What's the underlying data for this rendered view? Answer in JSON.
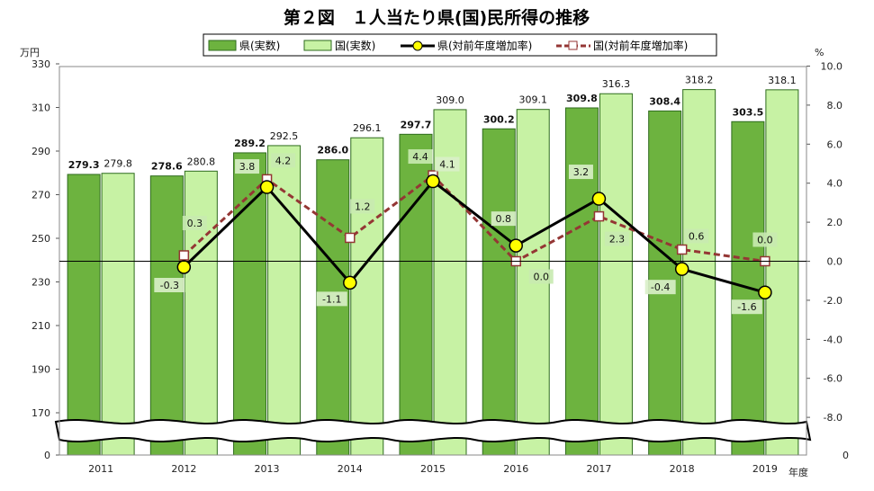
{
  "chart_data": {
    "type": "bar",
    "title": "第２図　１人当たり県(国)民所得の推移",
    "left_unit": "万円",
    "right_unit": "%",
    "x_unit": "年度",
    "categories": [
      "2011",
      "2012",
      "2013",
      "2014",
      "2015",
      "2016",
      "2017",
      "2018",
      "2019"
    ],
    "left_ticks": [
      "0",
      "170",
      "190",
      "210",
      "230",
      "250",
      "270",
      "290",
      "310",
      "330"
    ],
    "right_ticks": [
      "-8.0",
      "-6.0",
      "-4.0",
      "-2.0",
      "0.0",
      "2.0",
      "4.0",
      "6.0",
      "8.0",
      "10.0"
    ],
    "right_extra_tick": "0",
    "left_range_shown": [
      170,
      330
    ],
    "right_range": [
      -8,
      10
    ],
    "axis_break": true,
    "series": [
      {
        "name": "県(実数)",
        "kind": "bar",
        "color": "#6db33f",
        "values": [
          279.3,
          278.6,
          289.2,
          286.0,
          297.7,
          300.2,
          309.8,
          308.4,
          303.5
        ],
        "labels": [
          "279.3",
          "278.6",
          "289.2",
          "286.0",
          "297.7",
          "300.2",
          "309.8",
          "308.4",
          "303.5"
        ]
      },
      {
        "name": "国(実数)",
        "kind": "bar",
        "color": "#c7f2a4",
        "values": [
          279.8,
          280.8,
          292.5,
          296.1,
          309.0,
          309.1,
          316.3,
          318.2,
          318.1
        ],
        "labels": [
          "279.8",
          "280.8",
          "292.5",
          "296.1",
          "309.0",
          "309.1",
          "316.3",
          "318.2",
          "318.1"
        ]
      },
      {
        "name": "県(対前年度増加率)",
        "kind": "line",
        "color": "#000000",
        "marker_color": "#ffff00",
        "values": [
          null,
          -0.3,
          3.8,
          -1.1,
          4.1,
          0.8,
          3.2,
          -0.4,
          -1.6
        ],
        "labels": [
          "",
          "-0.3",
          "3.8",
          "-1.1",
          "4.1",
          "0.8",
          "3.2",
          "-0.4",
          "-1.6"
        ]
      },
      {
        "name": "国(対前年度増加率)",
        "kind": "line",
        "color": "#943634",
        "marker_color": "#ffffff",
        "values": [
          null,
          0.3,
          4.2,
          1.2,
          4.4,
          0.0,
          2.3,
          0.6,
          0.0
        ],
        "labels": [
          "",
          "0.3",
          "4.2",
          "1.2",
          "4.4",
          "0.0",
          "2.3",
          "0.6",
          "0.0"
        ]
      }
    ]
  }
}
